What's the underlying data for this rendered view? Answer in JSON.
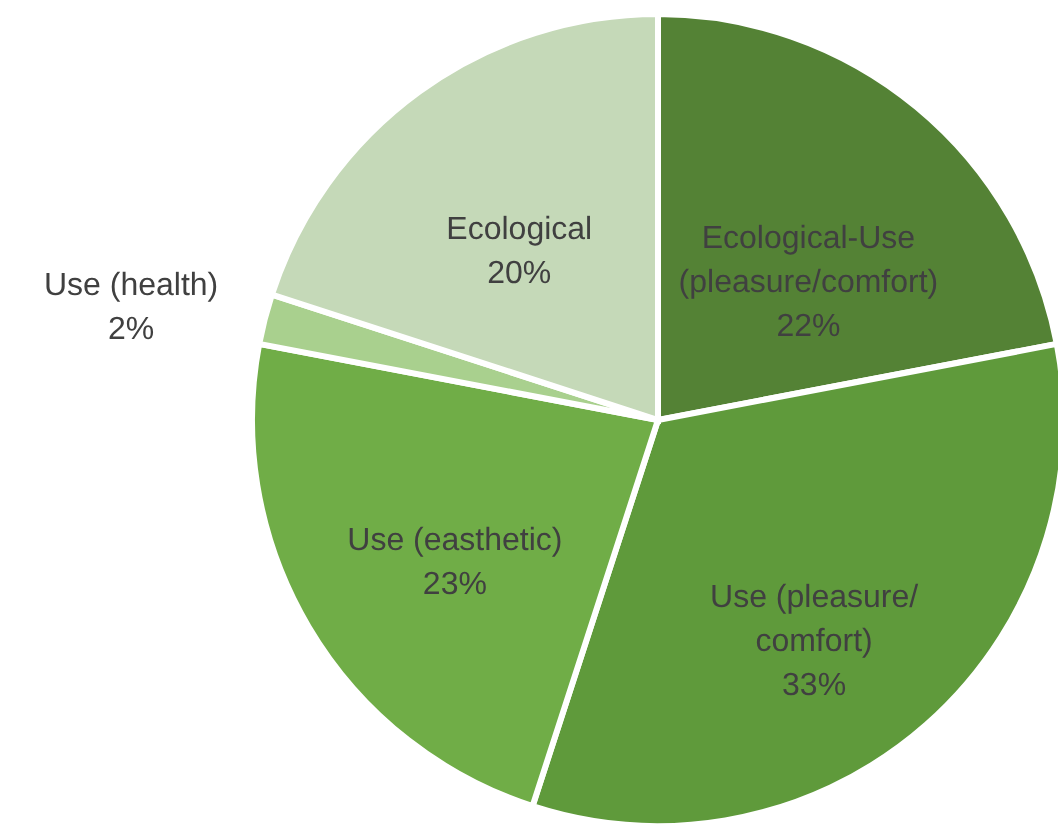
{
  "chart_data": {
    "type": "pie",
    "categories": [
      "Ecological-Use (pleasure/comfort)",
      "Use (pleasure/ comfort)",
      "Use (easthetic)",
      "Use (health)",
      "Ecological"
    ],
    "values": [
      22,
      33,
      23,
      2,
      20
    ],
    "colors": [
      "#548235",
      "#5f9a3b",
      "#70ad47",
      "#a9d08e",
      "#c5d9b8"
    ],
    "value_labels": [
      "22%",
      "33%",
      "23%",
      "2%",
      "20%"
    ]
  }
}
